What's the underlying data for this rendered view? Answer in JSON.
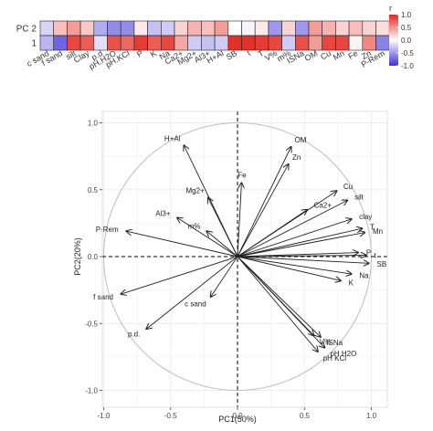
{
  "chart_data": [
    {
      "type": "heatmap",
      "rows": [
        "PC 2",
        "1"
      ],
      "columns": [
        "c sand",
        "f sand",
        "silt",
        "Clay",
        "p.d",
        "pH.H2O",
        "pH.KCl",
        "P",
        "K",
        "Na",
        "Ca2+",
        "Mg2+",
        "Al3+",
        "H+Al",
        "SB",
        "t",
        "T",
        "V%",
        "m%",
        "ISNa",
        "OM",
        "Cu",
        "Mn",
        "Fe",
        "Zn",
        "P-Rem"
      ],
      "values": [
        [
          -0.2,
          0.3,
          0.45,
          0.25,
          -0.4,
          -0.55,
          -0.55,
          0.1,
          -0.3,
          -0.25,
          0.2,
          0.35,
          0.3,
          0.45,
          0.0,
          -0.05,
          0.1,
          -0.5,
          0.2,
          -0.5,
          0.45,
          0.35,
          0.2,
          0.3,
          0.2,
          0.15
        ],
        [
          -0.35,
          -0.75,
          0.85,
          0.75,
          -0.15,
          0.8,
          0.7,
          0.9,
          0.75,
          0.85,
          0.4,
          -0.25,
          -0.3,
          -0.25,
          0.95,
          0.95,
          0.9,
          0.85,
          -0.25,
          0.8,
          0.45,
          0.85,
          0.85,
          0.05,
          0.55,
          -0.6
        ]
      ],
      "legend": {
        "title": "r",
        "ticks": [
          "1.0",
          "0.5",
          "0.0",
          "-0.5",
          "-1.0"
        ],
        "range": [
          -1,
          1
        ]
      },
      "colors": {
        "negative": "#3d2fd6",
        "neutral": "#ffffff",
        "positive": "#e3261c"
      }
    },
    {
      "type": "biplot",
      "xlabel": "PC1(50%)",
      "ylabel": "PC2(20%)",
      "xlim": [
        -1.0,
        1.0
      ],
      "ylim": [
        -1.0,
        1.0
      ],
      "xticks": [
        "-1.0",
        "-0.5",
        "0.0",
        "0.5",
        "1.0"
      ],
      "yticks": [
        "1.0",
        "0.5",
        "0.0",
        "-0.5",
        "-1.0"
      ],
      "grid": true,
      "circle": true,
      "vectors": [
        {
          "label": "H+Al",
          "x": -0.4,
          "y": 0.83
        },
        {
          "label": "Fe",
          "x": 0.03,
          "y": 0.55
        },
        {
          "label": "OM",
          "x": 0.4,
          "y": 0.82
        },
        {
          "label": "Zn",
          "x": 0.38,
          "y": 0.69
        },
        {
          "label": "Mg2+",
          "x": -0.22,
          "y": 0.44
        },
        {
          "label": "Al3+",
          "x": -0.45,
          "y": 0.29
        },
        {
          "label": "m%",
          "x": -0.23,
          "y": 0.19
        },
        {
          "label": "P-Rem",
          "x": -0.83,
          "y": 0.19
        },
        {
          "label": "Cu",
          "x": 0.74,
          "y": 0.49
        },
        {
          "label": "silt",
          "x": 0.82,
          "y": 0.42
        },
        {
          "label": "Ca2+",
          "x": 0.52,
          "y": 0.35
        },
        {
          "label": "clay",
          "x": 0.85,
          "y": 0.28
        },
        {
          "label": "T",
          "x": 0.93,
          "y": 0.21
        },
        {
          "label": "Mn",
          "x": 0.95,
          "y": 0.18
        },
        {
          "label": "P",
          "x": 0.9,
          "y": 0.03
        },
        {
          "label": "t",
          "x": 0.96,
          "y": 0.01
        },
        {
          "label": "SB",
          "x": 0.98,
          "y": -0.05
        },
        {
          "label": "Na",
          "x": 0.85,
          "y": -0.13
        },
        {
          "label": "K",
          "x": 0.77,
          "y": -0.18
        },
        {
          "label": "f sand",
          "x": -0.87,
          "y": -0.28
        },
        {
          "label": "p.d.",
          "x": -0.68,
          "y": -0.54
        },
        {
          "label": "c sand",
          "x": -0.2,
          "y": -0.3
        },
        {
          "label": "V%",
          "x": 0.57,
          "y": -0.59
        },
        {
          "label": "ISNa",
          "x": 0.62,
          "y": -0.6
        },
        {
          "label": "pH H2O",
          "x": 0.65,
          "y": -0.68
        },
        {
          "label": "pH KCl",
          "x": 0.6,
          "y": -0.71
        }
      ]
    }
  ]
}
